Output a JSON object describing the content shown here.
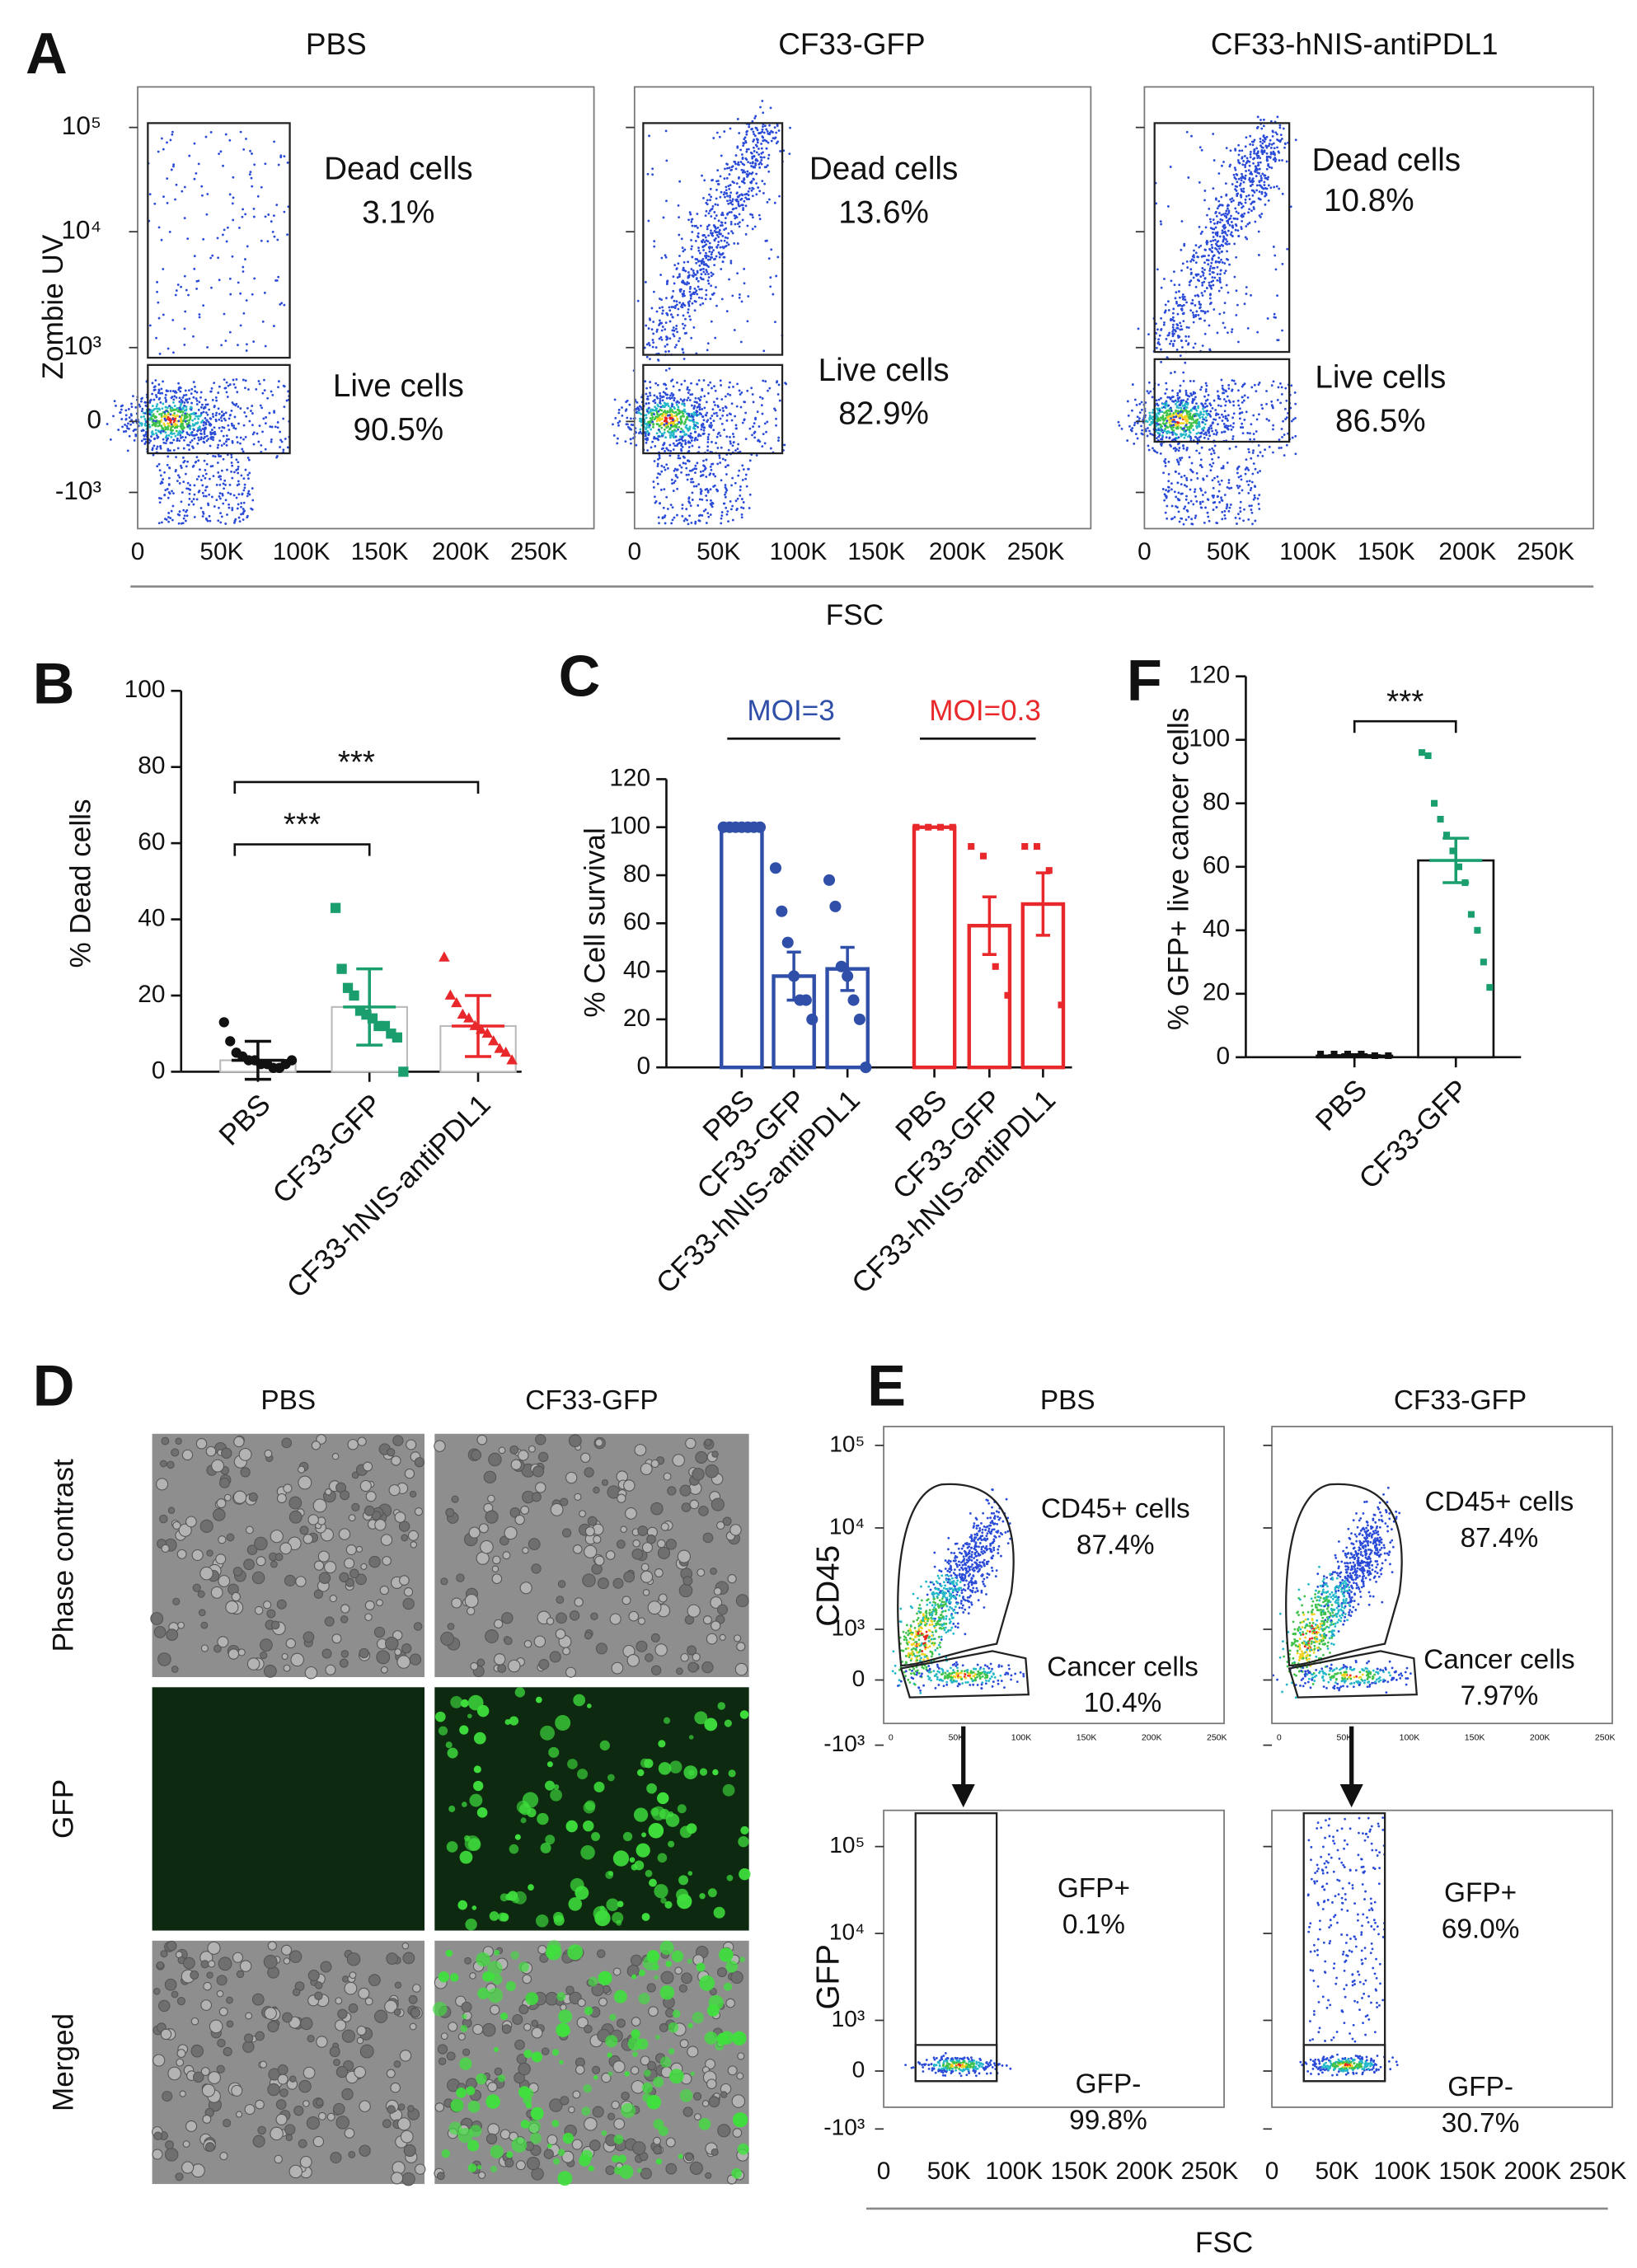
{
  "figure": {
    "A": {
      "label": "A",
      "titles": [
        "PBS",
        "CF33-GFP",
        "CF33-hNIS-antiPDL1"
      ],
      "y_label": "Zombie UV",
      "x_label": "FSC",
      "yticks": [
        "10⁵",
        "10⁴",
        "10³",
        "0",
        "-10³"
      ],
      "xticks": [
        "0",
        "50K",
        "100K",
        "150K",
        "200K",
        "250K"
      ],
      "gates": [
        [
          {
            "name": "Dead cells",
            "value": "3.1%"
          },
          {
            "name": "Live cells",
            "value": "90.5%"
          }
        ],
        [
          {
            "name": "Dead cells",
            "value": "13.6%"
          },
          {
            "name": "Live cells",
            "value": "82.9%"
          }
        ],
        [
          {
            "name": "Dead cells",
            "value": "10.8%"
          },
          {
            "name": "Live cells",
            "value": "86.5%"
          }
        ]
      ]
    },
    "D": {
      "label": "D",
      "columns": [
        "PBS",
        "CF33-GFP"
      ],
      "rows": [
        "Phase contrast",
        "GFP",
        "Merged"
      ]
    },
    "E": {
      "label": "E",
      "titles": [
        "PBS",
        "CF33-GFP"
      ],
      "y_labels": [
        "CD45",
        "GFP"
      ],
      "x_label": "FSC",
      "yticks": [
        "10⁵",
        "10⁴",
        "10³",
        "0",
        "-10³"
      ],
      "xticks": [
        "0",
        "50K",
        "100K",
        "150K",
        "200K",
        "250K"
      ],
      "gates": {
        "top": [
          [
            {
              "name": "CD45+ cells",
              "value": "87.4%"
            },
            {
              "name": "Cancer cells",
              "value": "10.4%"
            }
          ],
          [
            {
              "name": "CD45+ cells",
              "value": "87.4%"
            },
            {
              "name": "Cancer cells",
              "value": "7.97%"
            }
          ]
        ],
        "bottom": [
          [
            {
              "name": "GFP+",
              "value": "0.1%"
            },
            {
              "name": "GFP-",
              "value": "99.8%"
            }
          ],
          [
            {
              "name": "GFP+",
              "value": "69.0%"
            },
            {
              "name": "GFP-",
              "value": "30.7%"
            }
          ]
        ]
      }
    }
  },
  "chart_data": [
    {
      "type": "bar",
      "label": "B",
      "y_label": "% Dead cells",
      "categories": [
        "PBS",
        "CF33-GFP",
        "CF33-hNIS-antiPDL1"
      ],
      "values": [
        3,
        17,
        12
      ],
      "errors": [
        5,
        10,
        8
      ],
      "points": [
        [
          13,
          8,
          5,
          4,
          3,
          3,
          2,
          2,
          1,
          1,
          2,
          3
        ],
        [
          43,
          27,
          22,
          20,
          16,
          15,
          14,
          12,
          12,
          10,
          9,
          0
        ],
        [
          30,
          20,
          18,
          15,
          14,
          12,
          11,
          10,
          8,
          6,
          5,
          3
        ]
      ],
      "colors": [
        "#111111",
        "#1a9e6e",
        "#e8282b"
      ],
      "markers": [
        "circle",
        "square",
        "triangle"
      ],
      "ylim": [
        0,
        100
      ],
      "yticks": [
        0,
        20,
        40,
        60,
        80,
        100
      ],
      "annotations": [
        "***",
        "***"
      ]
    },
    {
      "type": "bar",
      "label": "C",
      "y_label": "% Cell survival",
      "categories": [
        "PBS",
        "CF33-GFP",
        "CF33-hNIS-antiPDL1",
        "PBS",
        "CF33-GFP",
        "CF33-hNIS-antiPDL1"
      ],
      "values": [
        100,
        38,
        41,
        100,
        59,
        68
      ],
      "errors": [
        0,
        10,
        9,
        0,
        12,
        13
      ],
      "points": [
        [
          100,
          100,
          100,
          100,
          100,
          100,
          100
        ],
        [
          83,
          65,
          52,
          38,
          28,
          28,
          20
        ],
        [
          78,
          67,
          42,
          38,
          28,
          20,
          0
        ],
        [
          100,
          100,
          100,
          100
        ],
        [
          92,
          88,
          42,
          30
        ],
        [
          92,
          92,
          82,
          26
        ]
      ],
      "colors": [
        "#2f4fa8",
        "#2f4fa8",
        "#2f4fa8",
        "#e8282b",
        "#e8282b",
        "#e8282b"
      ],
      "markers": [
        "circle",
        "circle",
        "circle",
        "square",
        "square",
        "square"
      ],
      "groups": [
        {
          "name": "MOI=3",
          "color": "#2f4fa8"
        },
        {
          "name": "MOI=0.3",
          "color": "#e8282b"
        }
      ],
      "ylim": [
        0,
        120
      ],
      "yticks": [
        0,
        20,
        40,
        60,
        80,
        100,
        120
      ]
    },
    {
      "type": "bar",
      "label": "F",
      "y_label": "% GFP+ live cancer cells",
      "categories": [
        "PBS",
        "CF33-GFP"
      ],
      "values": [
        0.5,
        62
      ],
      "errors": [
        0.3,
        7
      ],
      "points": [
        [
          1,
          1,
          1,
          1,
          0.5,
          0.5
        ],
        [
          96,
          95,
          80,
          75,
          70,
          65,
          60,
          55,
          45,
          40,
          30,
          22
        ]
      ],
      "colors": [
        "#111111",
        "#1a9e6e"
      ],
      "markers": [
        "square",
        "square"
      ],
      "ylim": [
        0,
        120
      ],
      "yticks": [
        0,
        20,
        40,
        60,
        80,
        100,
        120
      ],
      "annotations": [
        "***"
      ]
    }
  ]
}
